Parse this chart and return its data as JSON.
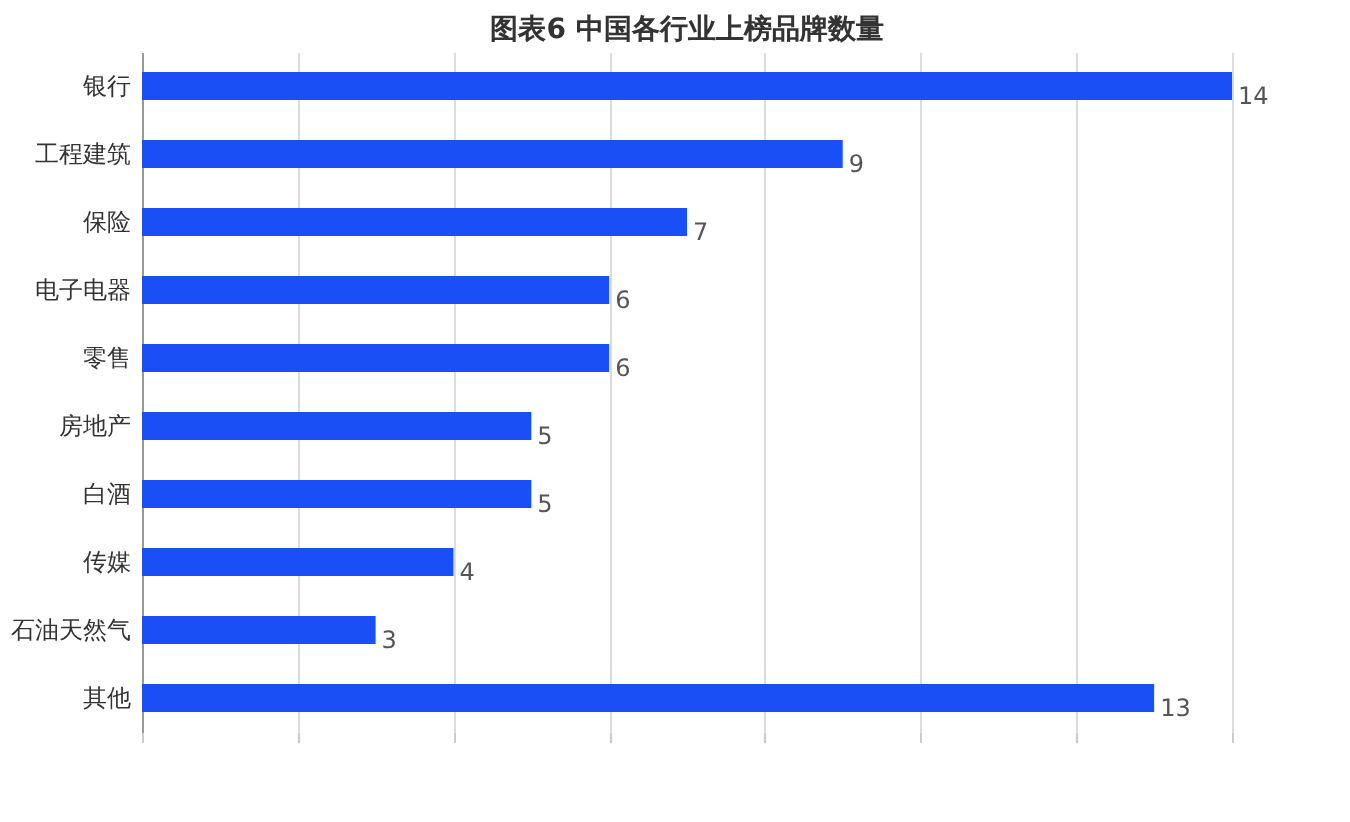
{
  "chart_data": {
    "type": "bar",
    "orientation": "horizontal",
    "title": "图表6  中国各行业上榜品牌数量",
    "categories": [
      "银行",
      "工程建筑",
      "保险",
      "电子电器",
      "零售",
      "房地产",
      "白酒",
      "传媒",
      "石油天然气",
      "其他"
    ],
    "values": [
      14,
      9,
      7,
      6,
      6,
      5,
      5,
      4,
      3,
      13
    ],
    "color": "#1a4ff5",
    "xlim": [
      0,
      14
    ],
    "xticks": [
      {
        "value": 0,
        "label": null
      },
      {
        "value": 2,
        "label": null
      },
      {
        "value": 4,
        "label": null
      },
      {
        "value": 6,
        "label": null
      },
      {
        "value": 8,
        "label": null
      },
      {
        "value": 10,
        "label": null
      },
      {
        "value": 12,
        "label": null
      },
      {
        "value": 14,
        "label": null
      }
    ],
    "grid": "x",
    "tick_labels": "y",
    "data_labels": true
  }
}
